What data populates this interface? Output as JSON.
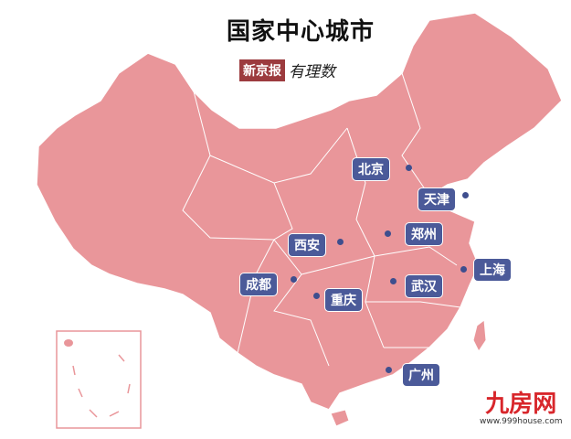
{
  "title": "国家中心城市",
  "brand": {
    "paper": "新京报",
    "column": "有理数"
  },
  "colors": {
    "land": "#e9969a",
    "border": "#ffffff",
    "label_bg": "#4b5a99",
    "dot": "#3e4e8e"
  },
  "cities": [
    {
      "name": "北京"
    },
    {
      "name": "天津"
    },
    {
      "name": "郑州"
    },
    {
      "name": "西安"
    },
    {
      "name": "上海"
    },
    {
      "name": "武汉"
    },
    {
      "name": "成都"
    },
    {
      "name": "重庆"
    },
    {
      "name": "广州"
    }
  ],
  "watermark": {
    "logo": "九房网",
    "url": "www.999house.com"
  }
}
